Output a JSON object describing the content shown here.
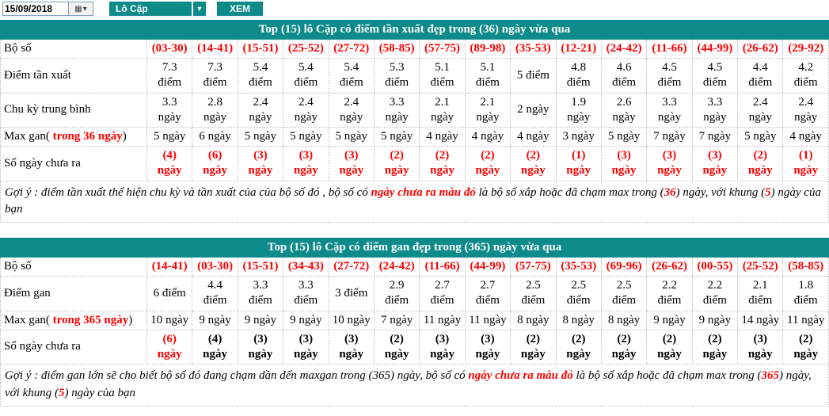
{
  "toolbar": {
    "date_value": "15/09/2018",
    "select_value": "Lô Cặp",
    "view_button": "XEM",
    "accent_color": "#0d8a8a"
  },
  "colors": {
    "teal": "#0d8a8a",
    "highlight_red": "#ff0000"
  },
  "table1": {
    "title": "Top (15) lô Cặp có điểm tần xuất đẹp trong (36) ngày vừa qua",
    "header": {
      "label": [
        {
          "t": "Bộ số"
        }
      ],
      "value_class": "red",
      "values": [
        "(03-30)",
        "(14-41)",
        "(15-51)",
        "(25-52)",
        "(27-72)",
        "(58-85)",
        "(57-75)",
        "(89-98)",
        "(35-53)",
        "(12-21)",
        "(24-42)",
        "(11-66)",
        "(44-99)",
        "(26-62)",
        "(29-92)"
      ]
    },
    "rows": {
      "freq": {
        "label": [
          {
            "t": "Điểm tần xuất"
          }
        ],
        "values": [
          "7.3 điểm",
          "7.3 điểm",
          "5.4 điểm",
          "5.4 điểm",
          "5.4 điểm",
          "5.3 điểm",
          "5.1 điểm",
          "5.1 điểm",
          "5 điểm",
          "4.8 điểm",
          "4.6 điểm",
          "4.5 điểm",
          "4.5 điểm",
          "4.4 điểm",
          "4.2 điểm"
        ]
      },
      "cycle": {
        "label": [
          {
            "t": "Chu kỳ trung bình"
          }
        ],
        "values": [
          "3.3 ngày",
          "2.8 ngày",
          "2.4 ngày",
          "2.4 ngày",
          "2.4 ngày",
          "3.3 ngày",
          "2.1 ngày",
          "2.1 ngày",
          "2 ngày",
          "1.9 ngày",
          "2.6 ngày",
          "3.3 ngày",
          "3.3 ngày",
          "2.4 ngày",
          "2.4 ngày"
        ]
      },
      "maxgan": {
        "label": [
          {
            "t": "Max gan( "
          },
          {
            "t": "trong 36 ngày",
            "c": "red"
          },
          {
            "t": ")"
          }
        ],
        "values": [
          "5 ngày",
          "6 ngày",
          "5 ngày",
          "5 ngày",
          "5 ngày",
          "5 ngày",
          "4 ngày",
          "4 ngày",
          "4 ngày",
          "3 ngày",
          "5 ngày",
          "7 ngày",
          "7 ngày",
          "5 ngày",
          "4 ngày"
        ]
      },
      "days_not_out": {
        "label": [
          {
            "t": "Số ngày chưa ra"
          }
        ],
        "value_class": "red",
        "values": [
          "(4) ngày",
          "(6) ngày",
          "(3) ngày",
          "(3) ngày",
          "(3) ngày",
          "(2) ngày",
          "(2) ngày",
          "(2) ngày",
          "(2) ngày",
          "(1) ngày",
          "(3) ngày",
          "(3) ngày",
          "(3) ngày",
          "(2) ngày",
          "(1) ngày"
        ]
      }
    },
    "note": [
      "Gợi ý : điểm tần xuất thể hiện chu kỳ và tần xuất của của bộ số đó , bộ số có ",
      "ngày chưa ra màu đỏ",
      " là bộ số xắp hoặc đã chạm max trong (",
      "36",
      ") ngày, với khung (",
      "5",
      ") ngày của bạn"
    ]
  },
  "table2": {
    "title": "Top (15) lô Cặp có điểm gan đẹp trong (365) ngày vừa qua",
    "header": {
      "label": [
        {
          "t": "Bộ số"
        }
      ],
      "value_class": "red",
      "values": [
        "(14-41)",
        "(03-30)",
        "(15-51)",
        "(34-43)",
        "(27-72)",
        "(24-42)",
        "(11-66)",
        "(44-99)",
        "(57-75)",
        "(35-53)",
        "(69-96)",
        "(26-62)",
        "(00-55)",
        "(25-52)",
        "(58-85)"
      ]
    },
    "rows": {
      "gan_points": {
        "label": [
          {
            "t": "Điểm gan"
          }
        ],
        "values": [
          "6 điểm",
          "4.4 điểm",
          "3.3 điểm",
          "3.3 điểm",
          "3 điểm",
          "2.9 điểm",
          "2.7 điểm",
          "2.7 điểm",
          "2.5 điểm",
          "2.5 điểm",
          "2.5 điểm",
          "2.2 điểm",
          "2.2 điểm",
          "2.1 điểm",
          "1.8 điểm"
        ]
      },
      "maxgan": {
        "label": [
          {
            "t": "Max gan( "
          },
          {
            "t": "trong 365 ngày",
            "c": "red"
          },
          {
            "t": ")"
          }
        ],
        "values": [
          "10 ngày",
          "9 ngày",
          "9 ngày",
          "9 ngày",
          "10 ngày",
          "7 ngày",
          "11 ngày",
          "11 ngày",
          "8 ngày",
          "8 ngày",
          "8 ngày",
          "9 ngày",
          "9 ngày",
          "14 ngày",
          "11 ngày"
        ]
      },
      "days_not_out": {
        "label": [
          {
            "t": "Số ngày chưa ra"
          }
        ],
        "value_class": "bold",
        "values": [
          {
            "t": "(6) ngày",
            "c": "red"
          },
          "(4) ngày",
          "(3) ngày",
          "(3) ngày",
          "(3) ngày",
          "(2) ngày",
          "(3) ngày",
          "(3) ngày",
          "(2) ngày",
          "(2) ngày",
          "(2) ngày",
          "(2) ngày",
          "(2) ngày",
          "(3) ngày",
          "(2) ngày"
        ]
      }
    },
    "note": [
      "Gợi ý : điểm gan lớn sẽ cho biết bộ số đó đang chạm dần đến maxgan trong (365) ngày, bộ số có ",
      "ngày chưa ra màu đỏ",
      " là bộ số xắp hoặc đã chạm max trong (",
      "365",
      ") ngày, với khung (",
      "5",
      ") ngày của bạn"
    ]
  }
}
